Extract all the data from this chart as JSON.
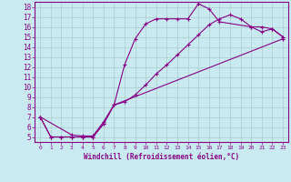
{
  "xlabel": "Windchill (Refroidissement éolien,°C)",
  "bg_color": "#c8eaf0",
  "line_color": "#880088",
  "grid_color": "#aacccc",
  "xlim": [
    -0.5,
    23.5
  ],
  "ylim": [
    4.5,
    18.5
  ],
  "xticks": [
    0,
    1,
    2,
    3,
    4,
    5,
    6,
    7,
    8,
    9,
    10,
    11,
    12,
    13,
    14,
    15,
    16,
    17,
    18,
    19,
    20,
    21,
    22,
    23
  ],
  "yticks": [
    5,
    6,
    7,
    8,
    9,
    10,
    11,
    12,
    13,
    14,
    15,
    16,
    17,
    18
  ],
  "curve1_x": [
    0,
    1,
    2,
    3,
    4,
    5,
    6,
    7,
    8,
    9,
    10,
    11,
    12,
    13,
    14,
    15,
    16,
    17,
    20,
    21,
    22,
    23
  ],
  "curve1_y": [
    7,
    5,
    5,
    5,
    5,
    5,
    6.3,
    8.2,
    12.2,
    14.8,
    16.3,
    16.8,
    16.8,
    16.8,
    16.8,
    18.3,
    17.8,
    16.5,
    16.0,
    16.0,
    15.8,
    15.0
  ],
  "curve2_x": [
    0,
    1,
    2,
    3,
    4,
    5,
    6,
    7,
    8,
    9,
    10,
    11,
    12,
    13,
    14,
    15,
    16,
    17,
    18,
    19,
    20,
    21,
    22,
    23
  ],
  "curve2_y": [
    7,
    5,
    5,
    5,
    5,
    5,
    6.3,
    8.2,
    8.5,
    9.2,
    10.2,
    11.3,
    12.2,
    13.2,
    14.2,
    15.2,
    16.2,
    16.8,
    17.2,
    16.8,
    16.0,
    15.5,
    15.8,
    15.0
  ],
  "curve3_x": [
    0,
    3,
    4,
    5,
    6,
    7,
    23
  ],
  "curve3_y": [
    7,
    5.2,
    5.1,
    5.1,
    6.5,
    8.2,
    14.8
  ],
  "marker": "+"
}
